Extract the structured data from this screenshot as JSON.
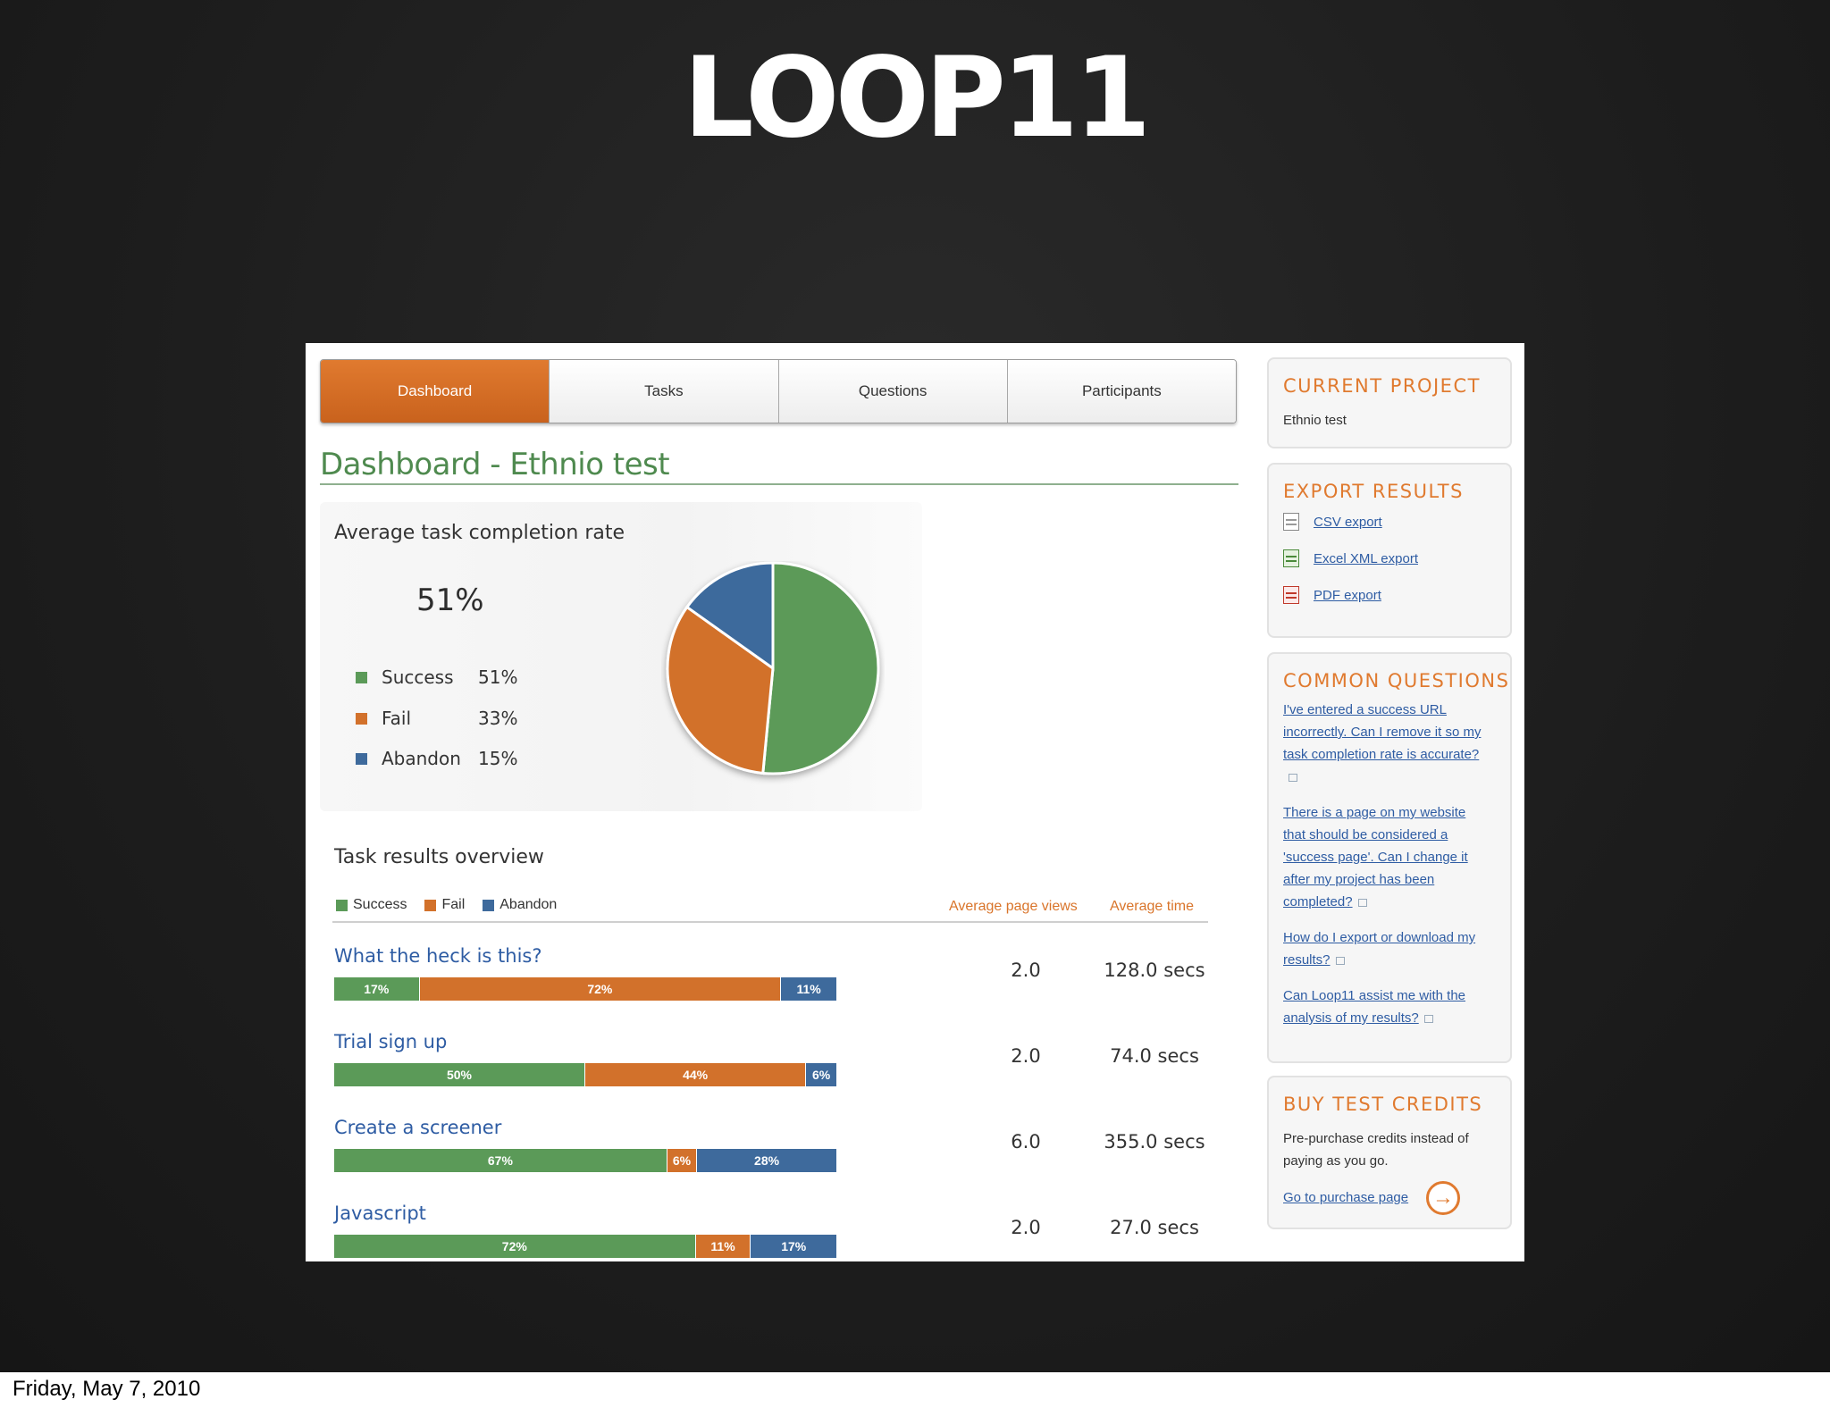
{
  "slide": {
    "title": "LOOP11",
    "date": "Friday, May 7, 2010"
  },
  "tabs": [
    "Dashboard",
    "Tasks",
    "Questions",
    "Participants"
  ],
  "active_tab": "Dashboard",
  "page_title": "Dashboard - Ethnio test",
  "completion": {
    "heading": "Average task completion rate",
    "rate": "51%",
    "legend": [
      {
        "label": "Success",
        "value": "51%",
        "color": "#5b9a58"
      },
      {
        "label": "Fail",
        "value": "33%",
        "color": "#d2712b"
      },
      {
        "label": "Abandon",
        "value": "15%",
        "color": "#3e6a9c"
      }
    ]
  },
  "chart_data": {
    "type": "pie",
    "title": "Average task completion rate",
    "categories": [
      "Success",
      "Fail",
      "Abandon"
    ],
    "values": [
      51,
      33,
      15
    ],
    "colors": [
      "#5b9a58",
      "#d2712b",
      "#3e6a9c"
    ]
  },
  "overview": {
    "heading": "Task results overview",
    "legend": [
      "Success",
      "Fail",
      "Abandon"
    ],
    "col_views": "Average page views",
    "col_time": "Average time",
    "tasks": [
      {
        "name": "What the heck is this?",
        "segments": [
          {
            "v": 17,
            "label": "17%"
          },
          {
            "v": 72,
            "label": "72%"
          },
          {
            "v": 11,
            "label": "11%"
          }
        ],
        "views": "2.0",
        "time": "128.0 secs"
      },
      {
        "name": "Trial sign up",
        "segments": [
          {
            "v": 50,
            "label": "50%"
          },
          {
            "v": 44,
            "label": "44%"
          },
          {
            "v": 6,
            "label": "6%"
          }
        ],
        "views": "2.0",
        "time": "74.0 secs"
      },
      {
        "name": "Create a screener",
        "segments": [
          {
            "v": 67,
            "label": "67%"
          },
          {
            "v": 6,
            "label": "6%"
          },
          {
            "v": 28,
            "label": "28%"
          }
        ],
        "views": "6.0",
        "time": "355.0 secs"
      },
      {
        "name": "Javascript",
        "segments": [
          {
            "v": 72,
            "label": "72%"
          },
          {
            "v": 11,
            "label": "11%"
          },
          {
            "v": 17,
            "label": "17%"
          }
        ],
        "views": "2.0",
        "time": "27.0 secs"
      }
    ]
  },
  "sidebar": {
    "current_project": {
      "heading": "CURRENT PROJECT",
      "name": "Ethnio test"
    },
    "export": {
      "heading": "EXPORT RESULTS",
      "links": [
        "CSV export",
        "Excel XML export",
        "PDF export"
      ]
    },
    "questions": {
      "heading": "COMMON QUESTIONS",
      "links": [
        "I've entered a success URL incorrectly. Can I remove it so my task completion rate is accurate?",
        "There is a page on my website that should be considered a 'success page'. Can I change it after my project has been completed?",
        "How do I export or download my results?",
        "Can Loop11 assist me with the analysis of my results?"
      ]
    },
    "credits": {
      "heading": "BUY TEST CREDITS",
      "text": "Pre-purchase credits instead of paying as you go.",
      "link": "Go to purchase page",
      "arrow_icon": "arrow-right-icon"
    }
  }
}
